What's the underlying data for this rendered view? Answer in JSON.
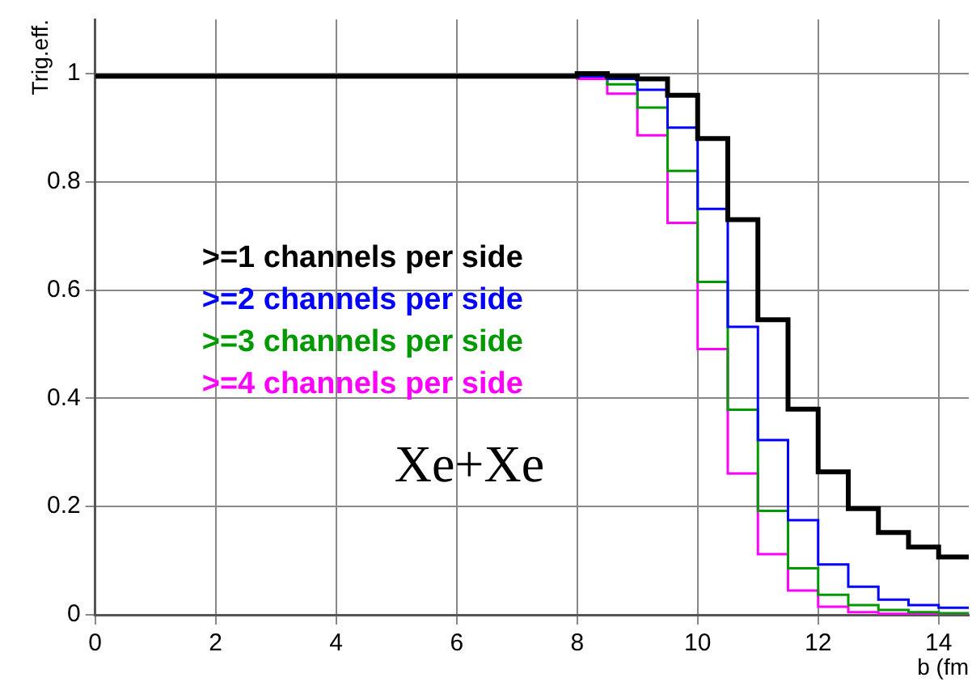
{
  "chart_data": {
    "type": "histogram",
    "xlabel": "b (fm",
    "ylabel": "Trig.eff.",
    "bins": [
      0,
      0.5,
      1,
      1.5,
      2,
      2.5,
      3,
      3.5,
      4,
      4.5,
      5,
      5.5,
      6,
      6.5,
      7,
      7.5,
      8,
      8.5,
      9,
      9.5,
      10,
      10.5,
      11,
      11.5,
      12,
      12.5,
      13,
      13.5,
      14,
      14.5
    ],
    "series": [
      {
        "name": ">=1 channels per side",
        "color": "#000000",
        "values": [
          0.995,
          0.995,
          0.995,
          0.995,
          0.995,
          0.995,
          0.995,
          0.995,
          0.995,
          0.995,
          0.995,
          0.995,
          0.995,
          0.995,
          0.995,
          0.995,
          1.0,
          0.995,
          0.99,
          0.96,
          0.88,
          0.73,
          0.545,
          0.38,
          0.264,
          0.196,
          0.152,
          0.125,
          0.107
        ]
      },
      {
        "name": ">=2 channels per side",
        "color": "#0000ff",
        "values": [
          0.995,
          0.995,
          0.995,
          0.995,
          0.995,
          0.995,
          0.995,
          0.995,
          0.995,
          0.995,
          0.995,
          0.995,
          0.995,
          0.995,
          0.995,
          0.995,
          0.995,
          0.99,
          0.97,
          0.9,
          0.75,
          0.532,
          0.323,
          0.175,
          0.093,
          0.052,
          0.028,
          0.018,
          0.013
        ]
      },
      {
        "name": ">=3 channels per side",
        "color": "#009900",
        "values": [
          0.995,
          0.995,
          0.995,
          0.995,
          0.995,
          0.995,
          0.995,
          0.995,
          0.995,
          0.995,
          0.995,
          0.995,
          0.995,
          0.995,
          0.995,
          0.995,
          0.995,
          0.98,
          0.937,
          0.82,
          0.615,
          0.379,
          0.192,
          0.086,
          0.037,
          0.018,
          0.009,
          0.005,
          0.003
        ]
      },
      {
        "name": ">=4 channels per side",
        "color": "#ff00ff",
        "values": [
          0.995,
          0.995,
          0.995,
          0.995,
          0.995,
          0.995,
          0.995,
          0.995,
          0.995,
          0.995,
          0.995,
          0.995,
          0.995,
          0.995,
          0.995,
          0.995,
          0.99,
          0.963,
          0.886,
          0.724,
          0.491,
          0.261,
          0.112,
          0.045,
          0.015,
          0.005,
          0.002,
          0.001,
          0
        ]
      }
    ],
    "xlim": [
      0,
      14.5
    ],
    "xticks": [
      0,
      2,
      4,
      6,
      8,
      10,
      12,
      14
    ],
    "ylim": [
      0,
      1.1
    ],
    "yticks": [
      0,
      0.2,
      0.4,
      0.6,
      0.8,
      1
    ],
    "grid": true,
    "legend": "left",
    "annotations": [
      "Xe+Xe"
    ]
  }
}
